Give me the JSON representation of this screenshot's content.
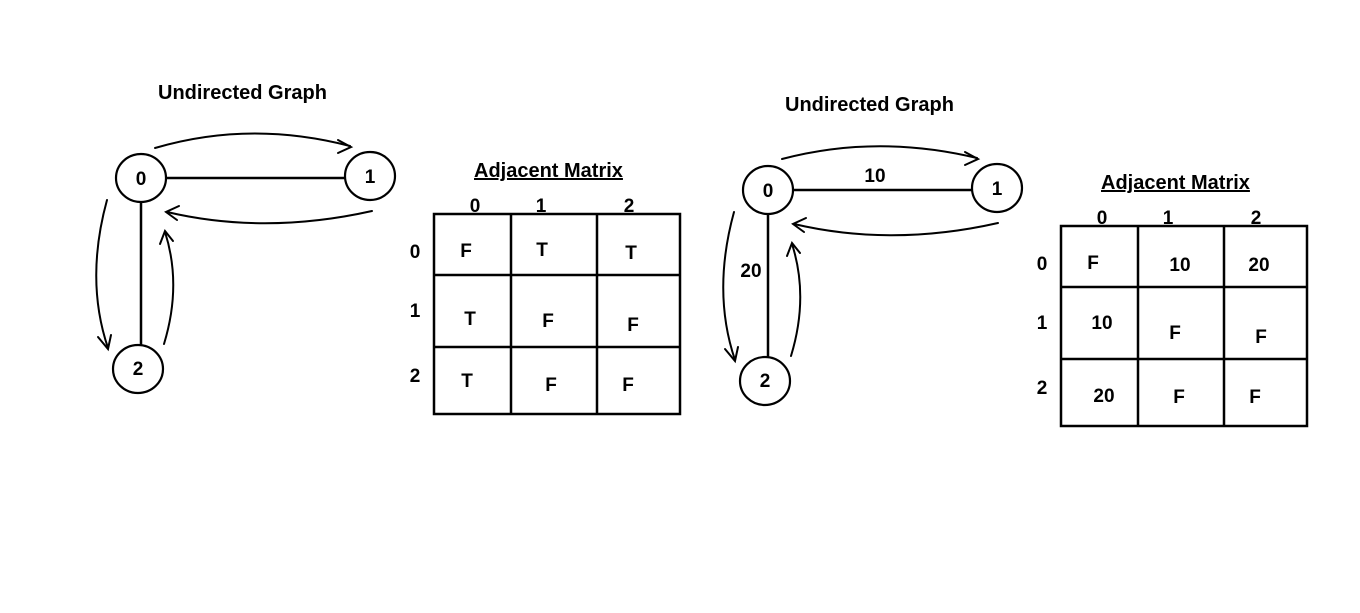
{
  "diagrams": [
    {
      "title": "Undirected Graph",
      "nodes": [
        "0",
        "1",
        "2"
      ],
      "edge_weights": {
        "e01": "",
        "e02": ""
      },
      "matrix": {
        "title": "Adjacent Matrix",
        "col_headers": [
          "0",
          "1",
          "2"
        ],
        "row_headers": [
          "0",
          "1",
          "2"
        ],
        "rows": [
          [
            "F",
            "T",
            "T"
          ],
          [
            "T",
            "F",
            "F"
          ],
          [
            "T",
            "F",
            "F"
          ]
        ]
      }
    },
    {
      "title": "Undirected Graph",
      "nodes": [
        "0",
        "1",
        "2"
      ],
      "edge_weights": {
        "e01": "10",
        "e02": "20"
      },
      "matrix": {
        "title": "Adjacent Matrix",
        "col_headers": [
          "0",
          "1",
          "2"
        ],
        "row_headers": [
          "0",
          "1",
          "2"
        ],
        "rows": [
          [
            "F",
            "10",
            "20"
          ],
          [
            "10",
            "F",
            "F"
          ],
          [
            "20",
            "F",
            "F"
          ]
        ]
      }
    }
  ]
}
